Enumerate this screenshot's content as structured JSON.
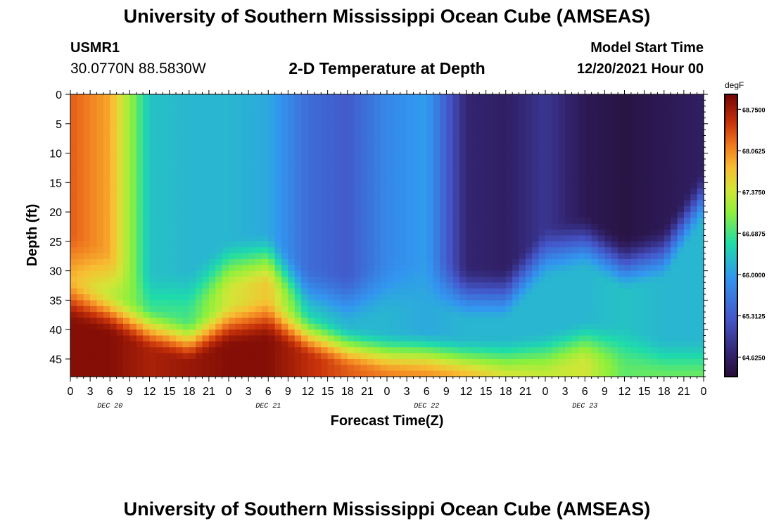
{
  "header": {
    "title": "University of Southern Mississippi Ocean Cube (AMSEAS)",
    "station": "USMR1",
    "coords": "30.0770N  88.5830W",
    "subtitle": "2-D Temperature at Depth",
    "start_label": "Model Start Time",
    "start_value": "12/20/2021 Hour 00"
  },
  "footer": {
    "title": "University of Southern Mississippi Ocean Cube (AMSEAS)"
  },
  "chart_data": {
    "type": "heatmap",
    "title": "2-D Temperature at Depth",
    "xlabel": "Forecast Time(Z)",
    "ylabel": "Depth (ft)",
    "x_tick_labels": [
      "0",
      "3",
      "6",
      "9",
      "12",
      "15",
      "18",
      "21",
      "0",
      "3",
      "6",
      "9",
      "12",
      "15",
      "18",
      "21",
      "0",
      "3",
      "6",
      "9",
      "12",
      "15",
      "18",
      "21",
      "0",
      "3",
      "6",
      "9",
      "12",
      "15",
      "18",
      "21",
      "0"
    ],
    "x_day_labels": [
      "DEC 20",
      "DEC 21",
      "DEC 22",
      "DEC 23"
    ],
    "xlim_hours": [
      0,
      96
    ],
    "y_ticks": [
      0,
      5,
      10,
      15,
      20,
      25,
      30,
      35,
      40,
      45
    ],
    "ylim": [
      0,
      48
    ],
    "colorbar": {
      "unit": "degF",
      "range": [
        64.3,
        69.0
      ],
      "tick_labels": [
        "68.7500",
        "68.0625",
        "67.3750",
        "66.6875",
        "66.0000",
        "65.3125",
        "64.6250"
      ],
      "tick_values": [
        68.75,
        68.0625,
        67.375,
        66.6875,
        66.0,
        65.3125,
        64.625
      ]
    },
    "temperature_field": {
      "description": "temperature degF by forecast hour and depth",
      "hours": [
        0,
        6,
        12,
        18,
        24,
        30,
        36,
        42,
        48,
        54,
        60,
        66,
        72,
        78,
        84,
        90,
        96
      ],
      "surface_degF": [
        68.3,
        67.9,
        66.3,
        66.2,
        66.2,
        66.1,
        65.5,
        65.3,
        65.8,
        66.0,
        64.7,
        64.6,
        64.9,
        64.5,
        64.4,
        64.5,
        64.6
      ],
      "top_layer_bottom_ft": [
        31,
        34,
        38,
        37,
        32,
        31,
        37,
        38,
        36,
        35,
        37,
        37,
        30,
        28,
        32,
        30,
        20
      ],
      "bottom_layer_top_ft": [
        37,
        39,
        42,
        44,
        41,
        40,
        43,
        45,
        46,
        46,
        47,
        47,
        46,
        44,
        45,
        47,
        47
      ],
      "bottom_degF": [
        68.9,
        68.9,
        68.7,
        68.8,
        68.9,
        68.9,
        68.6,
        68.3,
        68.1,
        68.0,
        67.9,
        67.5,
        67.3,
        67.4,
        66.8,
        66.9,
        66.9
      ],
      "mid_degF": [
        67.8,
        67.2,
        66.8,
        66.7,
        67.4,
        67.7,
        66.5,
        66.2,
        66.2,
        66.1,
        66.2,
        66.2,
        66.2,
        66.2,
        66.3,
        66.2,
        66.2
      ]
    }
  }
}
